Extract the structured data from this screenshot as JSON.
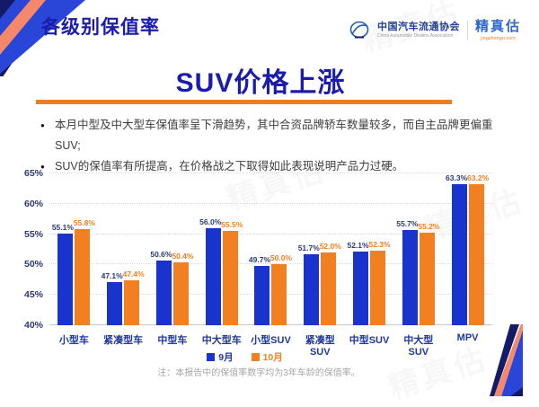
{
  "page": {
    "header_title": "各级别保值率",
    "slide_title": "SUV价格上涨",
    "bullets": [
      "本月中型及中大型车保值率呈下滑趋势，其中合资品牌轿车数量较多，而自主品牌更偏重SUV;",
      "SUV的保值率有所提高，在价格战之下取得如此表现说明产品力过硬。"
    ],
    "note": "注：本报告中的保值率数字均为3年车龄的保值率。",
    "watermark": "精真估"
  },
  "logos": {
    "cada": {
      "name_cn": "中国汽车流通协会",
      "name_en": "China Automobile Dealers Association"
    },
    "jzg": {
      "name": "精真估",
      "domain": "jingzhengu.com"
    }
  },
  "colors": {
    "title_blue": "#1b1bac",
    "divider_orange": "#ef7d1c",
    "bar_september": "#1834cc",
    "bar_october": "#f28021",
    "axis_text": "#2b3674",
    "category_text": "#20389c",
    "note_gray": "#a6a6a6",
    "deco_blue": "#2946d8",
    "deco_salmon": "#f5886a",
    "deco_navy": "#131b66"
  },
  "chart_data": {
    "type": "bar",
    "title": "",
    "categories": [
      "小型车",
      "紧凑型车",
      "中型车",
      "中大型车",
      "小型SUV",
      "紧凑型SUV",
      "中型SUV",
      "中大型SUV",
      "MPV"
    ],
    "series": [
      {
        "name": "9月",
        "color": "#1834cc",
        "values": [
          55.1,
          47.1,
          50.6,
          56.0,
          49.7,
          51.7,
          52.1,
          55.7,
          63.3
        ]
      },
      {
        "name": "10月",
        "color": "#f28021",
        "values": [
          55.8,
          47.4,
          50.4,
          55.5,
          50.0,
          52.0,
          52.3,
          55.2,
          63.2
        ]
      }
    ],
    "xlabel": "",
    "ylabel": "",
    "ylim": [
      40,
      65
    ],
    "ytick_step": 5,
    "yticks": [
      "40%",
      "45%",
      "50%",
      "55%",
      "60%",
      "65%"
    ],
    "grid": "dotted-horizontal",
    "legend_position": "bottom",
    "value_labels": true,
    "value_label_format": "0.0%"
  }
}
